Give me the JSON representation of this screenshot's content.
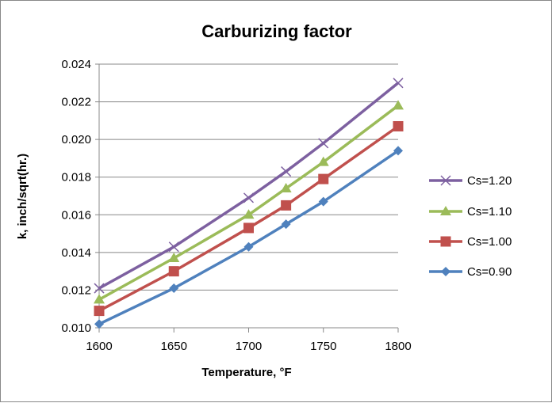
{
  "chart_data": {
    "type": "line",
    "title": "Carburizing factor",
    "xlabel": "Temperature, °F",
    "ylabel": "k, inch/sqrt(hr.)",
    "xlim": [
      1600,
      1800
    ],
    "ylim": [
      0.01,
      0.024
    ],
    "x_ticks": [
      "1600",
      "1650",
      "1700",
      "1750",
      "1800"
    ],
    "y_ticks": [
      "0.010",
      "0.012",
      "0.014",
      "0.016",
      "0.018",
      "0.020",
      "0.022",
      "0.024"
    ],
    "grid": "horizontal",
    "legend_position": "right",
    "x": [
      1600,
      1650,
      1700,
      1725,
      1750,
      1800
    ],
    "series": [
      {
        "name": "Cs=1.20",
        "color": "#7D60A0",
        "marker": "x",
        "values": [
          0.0121,
          0.0143,
          0.0169,
          0.0183,
          0.0198,
          0.023
        ]
      },
      {
        "name": "Cs=1.10",
        "color": "#9BBB59",
        "marker": "triangle",
        "values": [
          0.0115,
          0.0137,
          0.016,
          0.0174,
          0.0188,
          0.0218
        ]
      },
      {
        "name": "Cs=1.00",
        "color": "#C0504D",
        "marker": "square",
        "values": [
          0.0109,
          0.013,
          0.0153,
          0.0165,
          0.0179,
          0.0207
        ]
      },
      {
        "name": "Cs=0.90",
        "color": "#4F81BD",
        "marker": "diamond",
        "values": [
          0.0102,
          0.0121,
          0.0143,
          0.0155,
          0.0167,
          0.0194
        ]
      }
    ]
  }
}
